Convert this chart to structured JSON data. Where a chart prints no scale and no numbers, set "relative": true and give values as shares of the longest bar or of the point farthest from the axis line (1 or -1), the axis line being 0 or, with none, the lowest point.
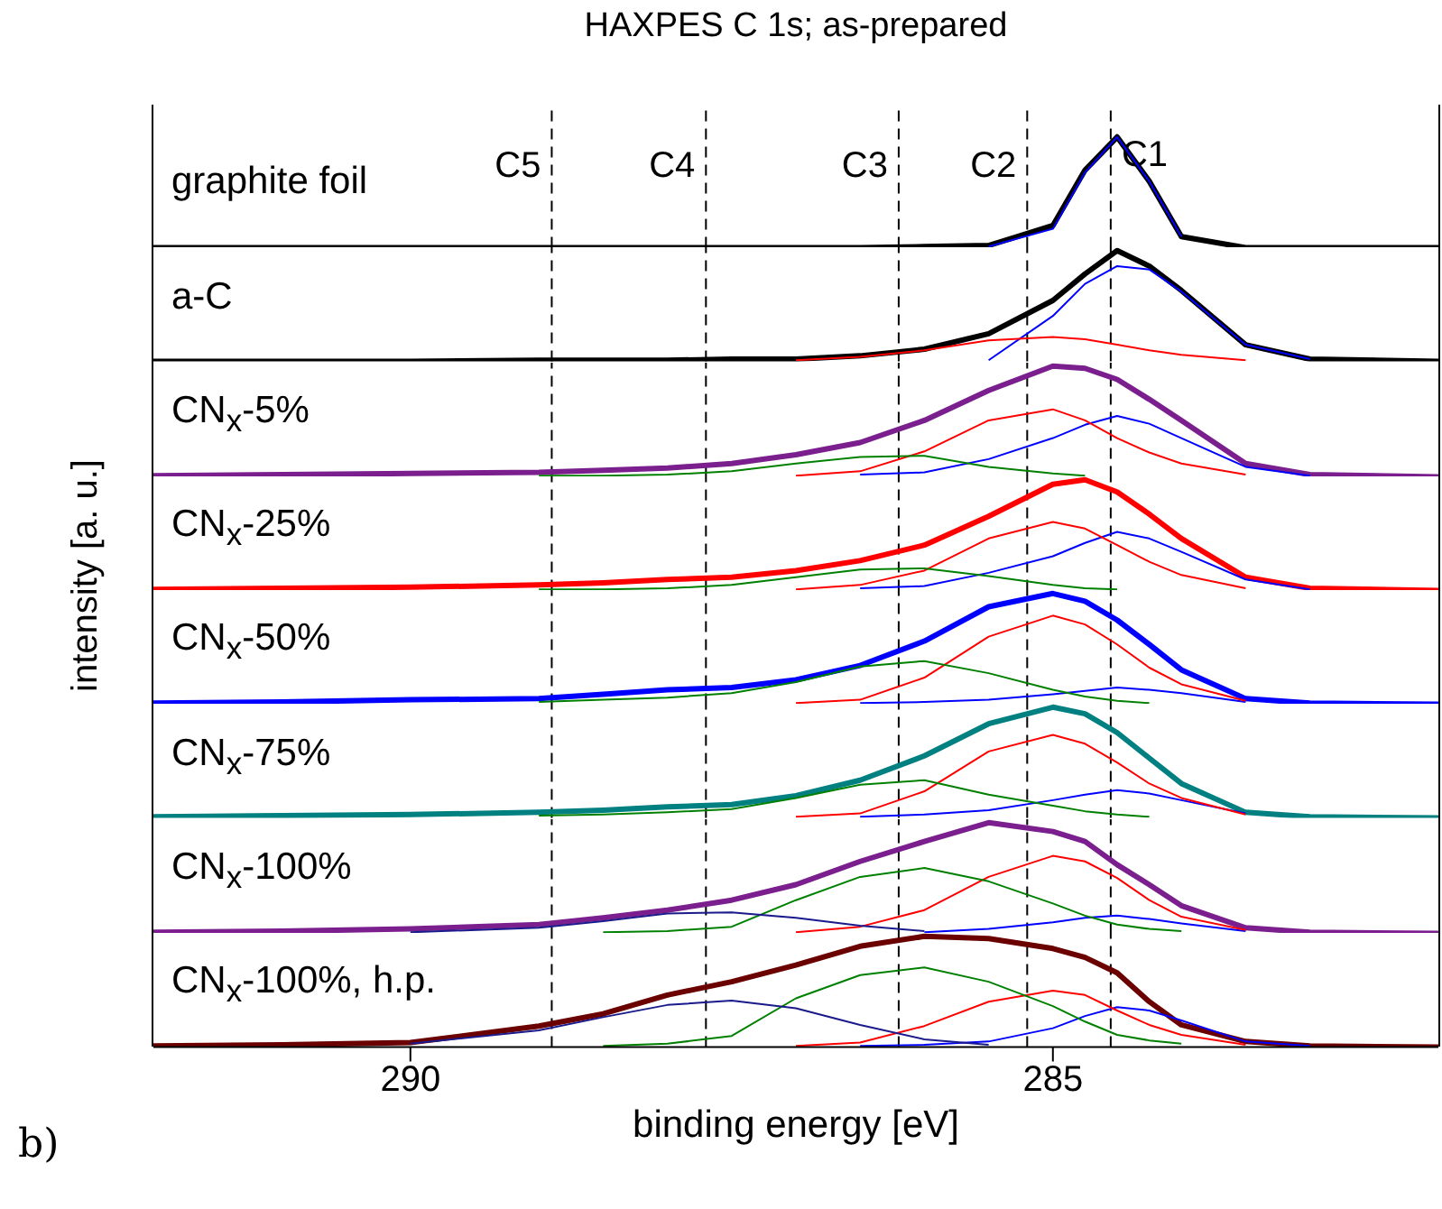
{
  "chart_data": [
    {
      "type": "line",
      "title": "HAXPES C 1s; as-prepared",
      "ylabel": "intensity [a. u.]",
      "relative": true,
      "marker": "none",
      "annotations": [
        "graphite foil"
      ],
      "x": [
        292,
        291,
        290,
        289,
        288.5,
        288,
        287.5,
        287,
        286.5,
        286,
        285.5,
        285,
        284.75,
        284.5,
        284.25,
        284,
        283.5,
        283,
        282
      ],
      "xlim": [
        292,
        282
      ],
      "tick_labels": false,
      "ref_lines": [
        {
          "axis": "x",
          "value": 288.9,
          "label": "C5",
          "color": "#000000",
          "line_style": "dashed"
        },
        {
          "axis": "x",
          "value": 287.7,
          "label": "C4",
          "color": "#000000",
          "line_style": "dashed"
        },
        {
          "axis": "x",
          "value": 286.2,
          "label": "C3",
          "color": "#000000",
          "line_style": "dashed"
        },
        {
          "axis": "x",
          "value": 285.2,
          "label": "C2",
          "color": "#000000",
          "line_style": "dashed"
        },
        {
          "axis": "x",
          "value": 284.55,
          "label": "C1",
          "color": "#000000",
          "line_style": "dashed"
        }
      ],
      "series": [
        {
          "color": "#000000",
          "values": [
            0,
            0,
            0,
            0,
            0,
            0,
            0,
            0,
            0,
            0.01,
            0.02,
            0.2,
            0.7,
            1,
            0.6,
            0.1,
            0,
            0,
            0
          ]
        },
        {
          "color": "#0000ff",
          "values": [
            null,
            null,
            null,
            null,
            null,
            null,
            null,
            null,
            null,
            null,
            0.01,
            0.17,
            0.68,
            1,
            0.6,
            0.1,
            null,
            null,
            null
          ]
        }
      ]
    },
    {
      "type": "line",
      "relative": true,
      "marker": "none",
      "annotations": [
        "a-C"
      ],
      "x": [
        292,
        291,
        290,
        289,
        288.5,
        288,
        287.5,
        287,
        286.5,
        286,
        285.5,
        285,
        284.75,
        284.5,
        284.25,
        284,
        283.5,
        283,
        282
      ],
      "xlim": [
        292,
        282
      ],
      "tick_labels": false,
      "ref_lines": [
        {
          "axis": "x",
          "value": 288.9,
          "color": "#000000",
          "line_style": "dashed"
        },
        {
          "axis": "x",
          "value": 287.7,
          "color": "#000000",
          "line_style": "dashed"
        },
        {
          "axis": "x",
          "value": 286.2,
          "color": "#000000",
          "line_style": "dashed"
        },
        {
          "axis": "x",
          "value": 285.2,
          "color": "#000000",
          "line_style": "dashed"
        },
        {
          "axis": "x",
          "value": 284.55,
          "color": "#000000",
          "line_style": "dashed"
        }
      ],
      "series": [
        {
          "color": "#000000",
          "values": [
            0,
            0,
            0,
            0.01,
            0.01,
            0.01,
            0.02,
            0.02,
            0.05,
            0.11,
            0.25,
            0.55,
            0.79,
            1,
            0.86,
            0.64,
            0.15,
            0.02,
            0
          ]
        },
        {
          "color": "#0000ff",
          "values": [
            null,
            null,
            null,
            null,
            null,
            null,
            null,
            null,
            null,
            null,
            0.01,
            0.41,
            0.7,
            0.86,
            0.83,
            0.63,
            0.15,
            0.02,
            null
          ]
        },
        {
          "color": "#ff0000",
          "values": [
            null,
            null,
            null,
            null,
            null,
            null,
            null,
            0.01,
            0.04,
            0.1,
            0.19,
            0.22,
            0.2,
            0.15,
            0.1,
            0.06,
            0.01,
            null,
            null
          ]
        }
      ]
    },
    {
      "type": "line",
      "relative": true,
      "marker": "none",
      "annotations": [
        "CN$_{x}$-5%"
      ],
      "x": [
        292,
        291,
        290,
        289,
        288.5,
        288,
        287.5,
        287,
        286.5,
        286,
        285.5,
        285,
        284.75,
        284.5,
        284.25,
        284,
        283.5,
        283,
        282
      ],
      "xlim": [
        292,
        282
      ],
      "tick_labels": false,
      "ref_lines": [
        {
          "axis": "x",
          "value": 288.9,
          "color": "#000000",
          "line_style": "dashed"
        },
        {
          "axis": "x",
          "value": 287.7,
          "color": "#000000",
          "line_style": "dashed"
        },
        {
          "axis": "x",
          "value": 286.2,
          "color": "#000000",
          "line_style": "dashed"
        },
        {
          "axis": "x",
          "value": 285.2,
          "color": "#000000",
          "line_style": "dashed"
        },
        {
          "axis": "x",
          "value": 284.55,
          "color": "#000000",
          "line_style": "dashed"
        }
      ],
      "series": [
        {
          "color": "#7b1f8f",
          "values": [
            0.01,
            0.02,
            0.03,
            0.04,
            0.06,
            0.08,
            0.12,
            0.2,
            0.31,
            0.51,
            0.78,
            1,
            0.98,
            0.88,
            0.7,
            0.51,
            0.12,
            0.02,
            0
          ]
        },
        {
          "color": "#0000ff",
          "values": [
            null,
            null,
            null,
            null,
            null,
            null,
            null,
            null,
            0.02,
            0.04,
            0.16,
            0.35,
            0.47,
            0.55,
            0.48,
            0.35,
            0.09,
            0.01,
            null
          ]
        },
        {
          "color": "#ff0000",
          "values": [
            null,
            null,
            null,
            null,
            null,
            null,
            null,
            0.01,
            0.05,
            0.23,
            0.51,
            0.61,
            0.51,
            0.35,
            0.22,
            0.12,
            0.02,
            null,
            null
          ]
        },
        {
          "color": "#008000",
          "values": [
            null,
            null,
            null,
            0.01,
            0.01,
            0.02,
            0.05,
            0.12,
            0.18,
            0.19,
            0.09,
            0.03,
            0.01,
            null,
            null,
            null,
            null,
            null,
            null
          ]
        }
      ]
    },
    {
      "type": "line",
      "relative": true,
      "marker": "none",
      "annotations": [
        "CN$_{x}$-25%"
      ],
      "x": [
        292,
        291,
        290,
        289,
        288.5,
        288,
        287.5,
        287,
        286.5,
        286,
        285.5,
        285,
        284.75,
        284.5,
        284.25,
        284,
        283.5,
        283,
        282
      ],
      "xlim": [
        292,
        282
      ],
      "tick_labels": false,
      "ref_lines": [
        {
          "axis": "x",
          "value": 288.9,
          "color": "#000000",
          "line_style": "dashed"
        },
        {
          "axis": "x",
          "value": 287.7,
          "color": "#000000",
          "line_style": "dashed"
        },
        {
          "axis": "x",
          "value": 286.2,
          "color": "#000000",
          "line_style": "dashed"
        },
        {
          "axis": "x",
          "value": 285.2,
          "color": "#000000",
          "line_style": "dashed"
        },
        {
          "axis": "x",
          "value": 284.55,
          "color": "#000000",
          "line_style": "dashed"
        }
      ],
      "series": [
        {
          "color": "#ff0000",
          "values": [
            0.01,
            0.02,
            0.03,
            0.05,
            0.07,
            0.1,
            0.12,
            0.18,
            0.27,
            0.41,
            0.67,
            0.96,
            1,
            0.89,
            0.69,
            0.47,
            0.12,
            0.02,
            0
          ]
        },
        {
          "color": "#0000ff",
          "values": [
            null,
            null,
            null,
            null,
            null,
            null,
            null,
            null,
            0.02,
            0.04,
            0.16,
            0.31,
            0.43,
            0.53,
            0.47,
            0.35,
            0.1,
            0.01,
            null
          ]
        },
        {
          "color": "#ff0000",
          "values": [
            null,
            null,
            null,
            null,
            null,
            null,
            null,
            0.01,
            0.05,
            0.18,
            0.47,
            0.62,
            0.56,
            0.41,
            0.26,
            0.14,
            0.02,
            null,
            null
          ]
        },
        {
          "color": "#008000",
          "values": [
            null,
            null,
            null,
            0.01,
            0.01,
            0.02,
            0.05,
            0.12,
            0.19,
            0.2,
            0.13,
            0.05,
            0.02,
            0.01,
            null,
            null,
            null,
            null,
            null
          ]
        }
      ]
    },
    {
      "type": "line",
      "relative": true,
      "marker": "none",
      "annotations": [
        "CN$_{x}$-50%"
      ],
      "x": [
        292,
        291,
        290,
        289,
        288.5,
        288,
        287.5,
        287,
        286.5,
        286,
        285.5,
        285,
        284.75,
        284.5,
        284.25,
        284,
        283.5,
        283,
        282
      ],
      "xlim": [
        292,
        282
      ],
      "tick_labels": false,
      "ref_lines": [
        {
          "axis": "x",
          "value": 288.9,
          "color": "#000000",
          "line_style": "dashed"
        },
        {
          "axis": "x",
          "value": 287.7,
          "color": "#000000",
          "line_style": "dashed"
        },
        {
          "axis": "x",
          "value": 286.2,
          "color": "#000000",
          "line_style": "dashed"
        },
        {
          "axis": "x",
          "value": 285.2,
          "color": "#000000",
          "line_style": "dashed"
        },
        {
          "axis": "x",
          "value": 284.55,
          "color": "#000000",
          "line_style": "dashed"
        }
      ],
      "series": [
        {
          "color": "#0000ff",
          "values": [
            0.01,
            0.02,
            0.04,
            0.05,
            0.09,
            0.13,
            0.15,
            0.22,
            0.35,
            0.57,
            0.88,
            1,
            0.93,
            0.76,
            0.54,
            0.31,
            0.05,
            0.01,
            0
          ]
        },
        {
          "color": "#0000ff",
          "values": [
            null,
            null,
            null,
            null,
            null,
            null,
            null,
            null,
            0.01,
            0.02,
            0.04,
            0.09,
            0.12,
            0.15,
            0.13,
            0.1,
            0.02,
            null,
            null
          ]
        },
        {
          "color": "#ff0000",
          "values": [
            null,
            null,
            null,
            null,
            null,
            null,
            null,
            0.01,
            0.04,
            0.24,
            0.61,
            0.8,
            0.72,
            0.54,
            0.33,
            0.18,
            0.03,
            null,
            null
          ]
        },
        {
          "color": "#008000",
          "values": [
            null,
            null,
            null,
            0.02,
            0.04,
            0.06,
            0.1,
            0.2,
            0.34,
            0.39,
            0.28,
            0.13,
            0.07,
            0.03,
            0.01,
            null,
            null,
            null,
            null
          ]
        }
      ]
    },
    {
      "type": "line",
      "relative": true,
      "marker": "none",
      "annotations": [
        "CN$_{x}$-75%"
      ],
      "x": [
        292,
        291,
        290,
        289,
        288.5,
        288,
        287.5,
        287,
        286.5,
        286,
        285.5,
        285,
        284.75,
        284.5,
        284.25,
        284,
        283.5,
        283,
        282
      ],
      "xlim": [
        292,
        282
      ],
      "tick_labels": false,
      "ref_lines": [
        {
          "axis": "x",
          "value": 288.9,
          "color": "#000000",
          "line_style": "dashed"
        },
        {
          "axis": "x",
          "value": 287.7,
          "color": "#000000",
          "line_style": "dashed"
        },
        {
          "axis": "x",
          "value": 286.2,
          "color": "#000000",
          "line_style": "dashed"
        },
        {
          "axis": "x",
          "value": 285.2,
          "color": "#000000",
          "line_style": "dashed"
        },
        {
          "axis": "x",
          "value": 284.55,
          "color": "#000000",
          "line_style": "dashed"
        }
      ],
      "series": [
        {
          "color": "#008080",
          "values": [
            0.01,
            0.02,
            0.03,
            0.05,
            0.07,
            0.1,
            0.12,
            0.2,
            0.34,
            0.56,
            0.85,
            1,
            0.94,
            0.77,
            0.54,
            0.31,
            0.05,
            0.01,
            0
          ]
        },
        {
          "color": "#0000ff",
          "values": [
            null,
            null,
            null,
            null,
            null,
            null,
            null,
            null,
            0.01,
            0.03,
            0.07,
            0.16,
            0.21,
            0.25,
            0.22,
            0.16,
            0.04,
            null,
            null
          ]
        },
        {
          "color": "#ff0000",
          "values": [
            null,
            null,
            null,
            null,
            null,
            null,
            null,
            0.01,
            0.04,
            0.24,
            0.6,
            0.75,
            0.67,
            0.5,
            0.31,
            0.18,
            0.03,
            null,
            null
          ]
        },
        {
          "color": "#008000",
          "values": [
            null,
            null,
            null,
            0.02,
            0.03,
            0.05,
            0.08,
            0.18,
            0.3,
            0.34,
            0.21,
            0.11,
            0.06,
            0.03,
            0.01,
            null,
            null,
            null,
            null
          ]
        }
      ]
    },
    {
      "type": "line",
      "relative": true,
      "marker": "none",
      "annotations": [
        "CN$_{x}$-100%"
      ],
      "x": [
        292,
        291,
        290,
        289,
        288.5,
        288,
        287.5,
        287,
        286.5,
        286,
        285.5,
        285,
        284.75,
        284.5,
        284.25,
        284,
        283.5,
        283,
        282
      ],
      "xlim": [
        292,
        282
      ],
      "tick_labels": false,
      "ref_lines": [
        {
          "axis": "x",
          "value": 288.9,
          "color": "#000000",
          "line_style": "dashed"
        },
        {
          "axis": "x",
          "value": 287.7,
          "color": "#000000",
          "line_style": "dashed"
        },
        {
          "axis": "x",
          "value": 286.2,
          "color": "#000000",
          "line_style": "dashed"
        },
        {
          "axis": "x",
          "value": 285.2,
          "color": "#000000",
          "line_style": "dashed"
        },
        {
          "axis": "x",
          "value": 284.55,
          "color": "#000000",
          "line_style": "dashed"
        }
      ],
      "series": [
        {
          "color": "#7b1f8f",
          "values": [
            0.01,
            0.02,
            0.04,
            0.08,
            0.14,
            0.21,
            0.3,
            0.44,
            0.65,
            0.83,
            1,
            0.92,
            0.83,
            0.62,
            0.44,
            0.25,
            0.05,
            0.01,
            0
          ]
        },
        {
          "color": "#0000ff",
          "values": [
            null,
            null,
            null,
            null,
            null,
            null,
            null,
            null,
            null,
            0.01,
            0.04,
            0.1,
            0.14,
            0.16,
            0.13,
            0.09,
            0.02,
            null,
            null
          ]
        },
        {
          "color": "#ff0000",
          "values": [
            null,
            null,
            null,
            null,
            null,
            null,
            null,
            0.01,
            0.06,
            0.21,
            0.51,
            0.7,
            0.65,
            0.5,
            0.3,
            0.15,
            0.03,
            null,
            null
          ]
        },
        {
          "color": "#008000",
          "values": [
            null,
            null,
            null,
            null,
            0.01,
            0.02,
            0.06,
            0.3,
            0.51,
            0.59,
            0.47,
            0.27,
            0.16,
            0.08,
            0.04,
            0.02,
            null,
            null,
            null
          ]
        },
        {
          "color": "#1a1a8c",
          "values": [
            null,
            null,
            0.01,
            0.05,
            0.11,
            0.18,
            0.19,
            0.14,
            0.07,
            0.02,
            null,
            null,
            null,
            null,
            null,
            null,
            null,
            null,
            null
          ]
        }
      ]
    },
    {
      "type": "line",
      "xlabel": "binding energy [eV]",
      "relative": true,
      "marker": "none",
      "annotations": [
        "CN$_{x}$-100%, h.p.",
        "b)"
      ],
      "x": [
        292,
        291,
        290,
        289,
        288.5,
        288,
        287.5,
        287,
        286.5,
        286,
        285.5,
        285,
        284.75,
        284.5,
        284.25,
        284,
        283.5,
        283,
        282
      ],
      "xlim": [
        292,
        282
      ],
      "xticks": [
        290,
        285
      ],
      "tick_labels": "x",
      "ref_lines": [
        {
          "axis": "x",
          "value": 288.9,
          "color": "#000000",
          "line_style": "dashed"
        },
        {
          "axis": "x",
          "value": 287.7,
          "color": "#000000",
          "line_style": "dashed"
        },
        {
          "axis": "x",
          "value": 286.2,
          "color": "#000000",
          "line_style": "dashed"
        },
        {
          "axis": "x",
          "value": 285.2,
          "color": "#000000",
          "line_style": "dashed"
        },
        {
          "axis": "x",
          "value": 284.55,
          "color": "#000000",
          "line_style": "dashed"
        }
      ],
      "series": [
        {
          "color": "#6b0000",
          "values": [
            0.01,
            0.02,
            0.04,
            0.19,
            0.3,
            0.47,
            0.59,
            0.74,
            0.91,
            1,
            0.98,
            0.89,
            0.81,
            0.67,
            0.41,
            0.2,
            0.05,
            0.01,
            0
          ]
        },
        {
          "color": "#0000ff",
          "values": [
            null,
            null,
            null,
            null,
            null,
            null,
            null,
            null,
            0.01,
            0.02,
            0.05,
            0.17,
            0.28,
            0.36,
            0.33,
            0.24,
            0.05,
            0.01,
            null
          ]
        },
        {
          "color": "#ff0000",
          "values": [
            null,
            null,
            null,
            null,
            null,
            null,
            null,
            0.01,
            0.04,
            0.19,
            0.41,
            0.51,
            0.47,
            0.33,
            0.2,
            0.11,
            0.02,
            null,
            null
          ]
        },
        {
          "color": "#008000",
          "values": [
            null,
            null,
            null,
            null,
            0.01,
            0.03,
            0.1,
            0.44,
            0.65,
            0.72,
            0.59,
            0.37,
            0.23,
            0.11,
            0.06,
            0.03,
            null,
            null,
            null
          ]
        },
        {
          "color": "#1a1a8c",
          "values": [
            null,
            null,
            0.03,
            0.15,
            0.27,
            0.38,
            0.42,
            0.35,
            0.2,
            0.07,
            0.02,
            null,
            null,
            null,
            null,
            null,
            null,
            null,
            null
          ]
        }
      ]
    }
  ]
}
